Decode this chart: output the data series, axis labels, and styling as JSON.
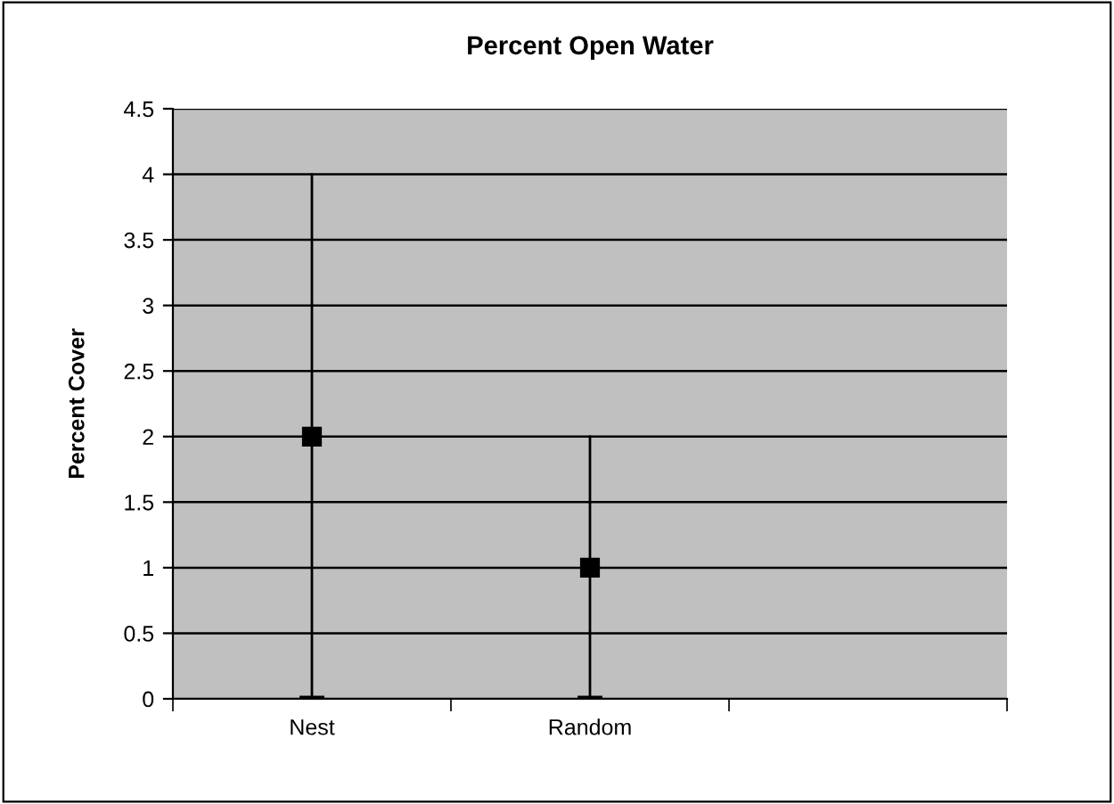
{
  "chart_data": {
    "type": "scatter",
    "title": "Percent Open Water",
    "ylabel": "Percent Cover",
    "categories": [
      "Nest",
      "Random",
      null
    ],
    "values": [
      2,
      1,
      null
    ],
    "errors": [
      [
        0,
        4
      ],
      [
        0,
        2
      ],
      null
    ],
    "color": "#000000",
    "marker": "square",
    "ylim": [
      0,
      4.5
    ],
    "yticks": [
      0,
      0.5,
      1,
      1.5,
      2,
      2.5,
      3,
      3.5,
      4,
      {
        "value": 4.5,
        "label": "4.5"
      }
    ],
    "grid": "y"
  }
}
